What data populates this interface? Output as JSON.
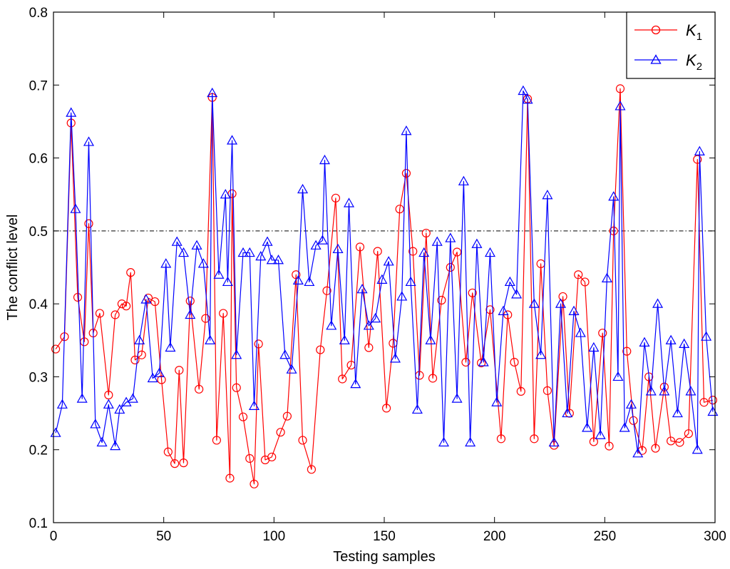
{
  "chart_data": {
    "type": "line",
    "title": "",
    "xlabel": "Testing samples",
    "ylabel": "The conflict level",
    "xlim": [
      0,
      300
    ],
    "ylim": [
      0.1,
      0.8
    ],
    "xticks": [
      0,
      50,
      100,
      150,
      200,
      250,
      300
    ],
    "yticks": [
      0.1,
      0.2,
      0.3,
      0.4,
      0.5,
      0.6,
      0.7,
      0.8
    ],
    "xtick_labels": [
      "0",
      "50",
      "100",
      "150",
      "200",
      "250",
      "300"
    ],
    "ytick_labels": [
      "0.1",
      "0.2",
      "0.3",
      "0.4",
      "0.5",
      "0.6",
      "0.7",
      "0.8"
    ],
    "threshold": 0.5,
    "legend_position": "top-right",
    "series": [
      {
        "name": "K",
        "subscript": "1",
        "color": "#ff0000",
        "marker": "circle",
        "x": [
          1,
          5,
          8,
          11,
          14,
          16,
          18,
          21,
          25,
          28,
          31,
          33,
          35,
          37,
          40,
          43,
          46,
          49,
          52,
          55,
          57,
          59,
          62,
          66,
          69,
          72,
          74,
          77,
          80,
          81,
          83,
          86,
          89,
          91,
          93,
          96,
          99,
          103,
          106,
          110,
          113,
          117,
          121,
          124,
          128,
          131,
          135,
          139,
          143,
          147,
          151,
          154,
          157,
          160,
          163,
          166,
          169,
          172,
          176,
          180,
          183,
          187,
          190,
          194,
          198,
          203,
          206,
          209,
          212,
          215,
          218,
          221,
          224,
          227,
          231,
          234,
          238,
          241,
          245,
          249,
          252,
          254,
          257,
          260,
          263,
          267,
          270,
          273,
          277,
          280,
          284,
          288,
          292,
          295,
          299
        ],
        "y": [
          0.338,
          0.355,
          0.648,
          0.409,
          0.348,
          0.51,
          0.36,
          0.387,
          0.275,
          0.385,
          0.4,
          0.397,
          0.443,
          0.323,
          0.33,
          0.408,
          0.403,
          0.296,
          0.197,
          0.181,
          0.309,
          0.182,
          0.404,
          0.283,
          0.38,
          0.683,
          0.213,
          0.387,
          0.161,
          0.551,
          0.285,
          0.245,
          0.188,
          0.153,
          0.345,
          0.186,
          0.19,
          0.224,
          0.246,
          0.44,
          0.213,
          0.173,
          0.337,
          0.418,
          0.545,
          0.297,
          0.316,
          0.478,
          0.34,
          0.472,
          0.257,
          0.346,
          0.53,
          0.579,
          0.472,
          0.302,
          0.497,
          0.298,
          0.405,
          0.45,
          0.471,
          0.32,
          0.415,
          0.319,
          0.392,
          0.215,
          0.385,
          0.32,
          0.28,
          0.681,
          0.215,
          0.455,
          0.281,
          0.206,
          0.41,
          0.25,
          0.44,
          0.43,
          0.211,
          0.36,
          0.205,
          0.5,
          0.695,
          0.335,
          0.24,
          0.199,
          0.3,
          0.202,
          0.286,
          0.212,
          0.21,
          0.222,
          0.598,
          0.265,
          0.268
        ]
      },
      {
        "name": "K",
        "subscript": "2",
        "color": "#0000ff",
        "marker": "triangle",
        "x": [
          1,
          4,
          8,
          10,
          13,
          16,
          19,
          22,
          25,
          28,
          30,
          33,
          36,
          39,
          42,
          45,
          48,
          51,
          53,
          56,
          59,
          62,
          65,
          68,
          71,
          72,
          75,
          78,
          79,
          81,
          83,
          86,
          89,
          91,
          94,
          97,
          99,
          102,
          105,
          108,
          111,
          113,
          116,
          119,
          122,
          123,
          126,
          129,
          132,
          134,
          137,
          140,
          143,
          146,
          149,
          152,
          155,
          158,
          160,
          162,
          165,
          168,
          171,
          174,
          177,
          180,
          183,
          186,
          189,
          192,
          195,
          198,
          201,
          204,
          207,
          210,
          213,
          215,
          218,
          221,
          224,
          227,
          230,
          233,
          236,
          239,
          242,
          245,
          248,
          251,
          254,
          256,
          257,
          259,
          262,
          265,
          268,
          271,
          274,
          277,
          280,
          283,
          286,
          289,
          292,
          293,
          296,
          299
        ],
        "y": [
          0.223,
          0.262,
          0.662,
          0.53,
          0.27,
          0.622,
          0.235,
          0.21,
          0.262,
          0.205,
          0.255,
          0.265,
          0.27,
          0.35,
          0.406,
          0.298,
          0.305,
          0.455,
          0.34,
          0.485,
          0.47,
          0.385,
          0.48,
          0.455,
          0.35,
          0.689,
          0.44,
          0.55,
          0.43,
          0.624,
          0.33,
          0.47,
          0.47,
          0.26,
          0.465,
          0.485,
          0.46,
          0.46,
          0.33,
          0.31,
          0.432,
          0.557,
          0.43,
          0.48,
          0.487,
          0.597,
          0.37,
          0.475,
          0.35,
          0.538,
          0.29,
          0.42,
          0.37,
          0.38,
          0.433,
          0.458,
          0.325,
          0.41,
          0.637,
          0.43,
          0.255,
          0.47,
          0.35,
          0.485,
          0.21,
          0.49,
          0.27,
          0.568,
          0.21,
          0.482,
          0.32,
          0.47,
          0.265,
          0.39,
          0.43,
          0.413,
          0.692,
          0.68,
          0.4,
          0.33,
          0.549,
          0.21,
          0.4,
          0.25,
          0.39,
          0.36,
          0.23,
          0.34,
          0.22,
          0.435,
          0.547,
          0.3,
          0.671,
          0.23,
          0.262,
          0.195,
          0.347,
          0.28,
          0.4,
          0.28,
          0.35,
          0.25,
          0.345,
          0.28,
          0.2,
          0.609,
          0.355,
          0.252
        ]
      }
    ]
  }
}
